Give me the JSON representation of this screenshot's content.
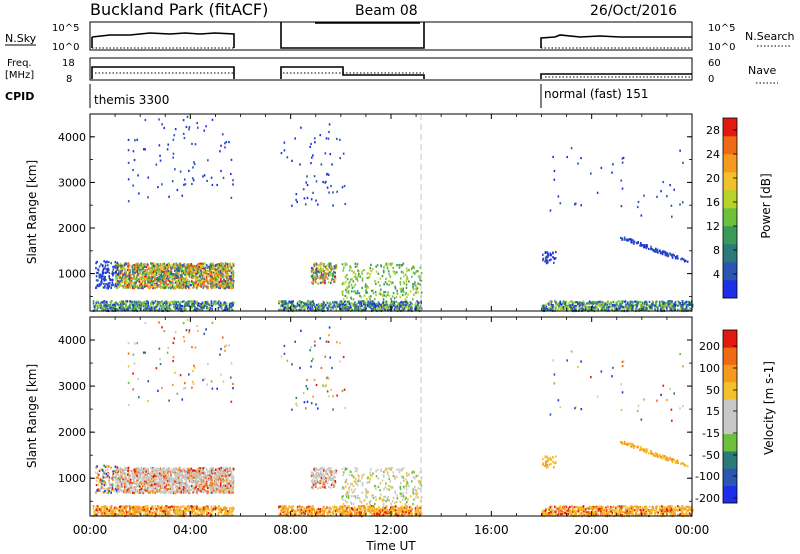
{
  "header": {
    "station": "Buckland Park (fitACF)",
    "beam": "Beam 08",
    "date": "26/Oct/2016"
  },
  "panels": {
    "nsky": {
      "label": "N.Sky",
      "tick_top": "10^5",
      "tick_bottom": "10^0",
      "right_label": "N.Search",
      "right_tick_top": "10^5",
      "right_tick_bottom": "10^0"
    },
    "freq": {
      "label_1": "Freq.",
      "label_2": "[MHz]",
      "tick_top": "18",
      "tick_bottom": "8",
      "right_label": "Nave",
      "right_tick_top": "60",
      "right_tick_bottom": "0"
    },
    "cpid": {
      "label": "CPID",
      "entries": [
        {
          "start_hour": 0.1,
          "text": "themis 3300"
        },
        {
          "start_hour": 18.0,
          "text": "normal (fast) 151"
        }
      ]
    }
  },
  "colors": {
    "power_scale": [
      "#1e2ee6",
      "#2a55b0",
      "#2a7a7a",
      "#3a9a5a",
      "#6cc03a",
      "#b8d22a",
      "#f2c028",
      "#f59a1e",
      "#f06a14",
      "#e01a10"
    ],
    "velocity_scale": [
      "#1e2ee6",
      "#2a55b0",
      "#2a7a7a",
      "#6cc03a",
      "#c8c8c8",
      "#c8c8c8",
      "#f2c028",
      "#f59a1e",
      "#f06a14",
      "#e01a10"
    ],
    "ground_scatter": "#c8c8c8",
    "dashed_line": "#c8c8c8"
  },
  "chart_data": [
    {
      "type": "heatmap",
      "ylabel": "Slant Range [km]",
      "xlim": [
        0,
        24
      ],
      "ylim": [
        180,
        4500
      ],
      "y_ticks": [
        "1000",
        "2000",
        "3000",
        "4000"
      ],
      "colorbar": {
        "label": "Power [dB]",
        "ticks": [
          "4",
          "8",
          "12",
          "16",
          "20",
          "24",
          "28"
        ],
        "range": [
          0,
          30
        ]
      },
      "coverage_hours": [
        [
          0.0,
          5.75
        ],
        [
          7.5,
          13.25
        ],
        [
          18.0,
          24.0
        ]
      ],
      "dashed_marker_hour": 13.2
    },
    {
      "type": "heatmap",
      "ylabel": "Slant Range [km]",
      "xlabel": "Time UT",
      "xlim": [
        0,
        24
      ],
      "ylim": [
        180,
        4500
      ],
      "x_ticks": [
        "00:00",
        "04:00",
        "08:00",
        "12:00",
        "16:00",
        "20:00",
        "00:00"
      ],
      "y_ticks": [
        "1000",
        "2000",
        "3000",
        "4000"
      ],
      "colorbar": {
        "label": "Velocity [m s-1]",
        "ticks": [
          "200",
          "100",
          "50",
          "15",
          "-15",
          "-50",
          "-100",
          "-200"
        ],
        "range": [
          -250,
          250
        ]
      },
      "coverage_hours": [
        [
          0.0,
          5.75
        ],
        [
          7.5,
          13.25
        ],
        [
          18.0,
          24.0
        ]
      ],
      "dashed_marker_hour": 13.2
    }
  ]
}
